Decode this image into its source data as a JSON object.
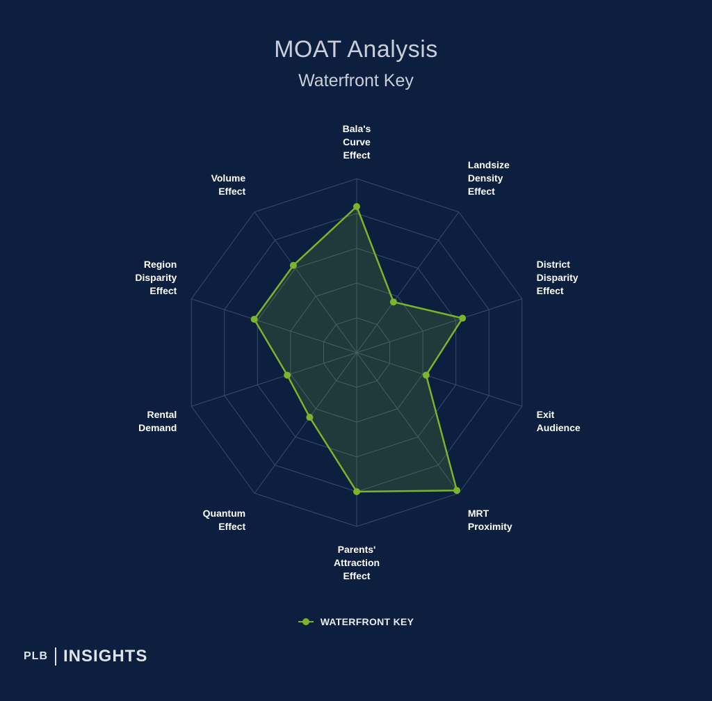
{
  "header": {
    "title": "MOAT Analysis",
    "subtitle": "Waterfront Key"
  },
  "chart_data": {
    "type": "radar",
    "title": "MOAT Analysis",
    "subtitle": "Waterfront Key",
    "axes": [
      "Bala's Curve Effect",
      "Landsize Density Effect",
      "District Disparity Effect",
      "Exit Audience",
      "MRT Proximity",
      "Parents' Attraction Effect",
      "Quantum Effect",
      "Rental Demand",
      "Region Disparity Effect",
      "Volume Effect"
    ],
    "axis_label_lines": [
      [
        "Bala's",
        "Curve",
        "Effect"
      ],
      [
        "Landsize",
        "Density",
        "Effect"
      ],
      [
        "District",
        "Disparity",
        "Effect"
      ],
      [
        "Exit",
        "Audience"
      ],
      [
        "MRT",
        "Proximity"
      ],
      [
        "Parents'",
        "Attraction",
        "Effect"
      ],
      [
        "Quantum",
        "Effect"
      ],
      [
        "Rental",
        "Demand"
      ],
      [
        "Region",
        "Disparity",
        "Effect"
      ],
      [
        "Volume",
        "Effect"
      ]
    ],
    "range": [
      0,
      5
    ],
    "grid_levels": 5,
    "series": [
      {
        "name": "WATERFRONT KEY",
        "values": [
          4.2,
          1.8,
          3.2,
          2.1,
          4.9,
          4.0,
          2.3,
          2.1,
          3.1,
          3.1
        ]
      }
    ],
    "legend_position": "bottom-center",
    "colors": {
      "series": "#7ab52a",
      "fill": "rgba(122,181,42,0.18)",
      "grid": "#3a4b6a",
      "background": "#0d1f3f"
    }
  },
  "legend": {
    "label": "WATERFRONT KEY"
  },
  "brand": {
    "plb": "PLB",
    "name": "INSIGHTS"
  }
}
